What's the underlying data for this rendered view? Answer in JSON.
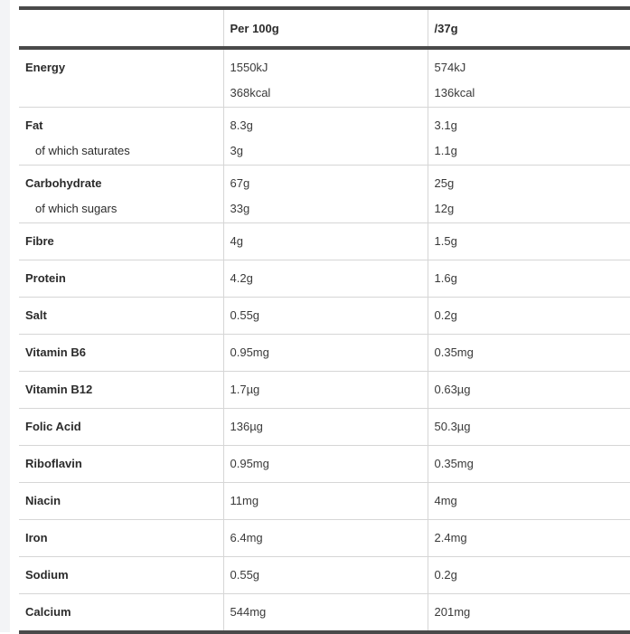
{
  "header": {
    "col0": "",
    "col1": "Per 100g",
    "col2": "/37g"
  },
  "rows": [
    {
      "name": "Energy",
      "per100": "1550kJ",
      "per37": "574kJ",
      "sub_name": "",
      "sub_per100": "368kcal",
      "sub_per37": "136kcal"
    },
    {
      "name": "Fat",
      "per100": "8.3g",
      "per37": "3.1g",
      "sub_name": "of which saturates",
      "sub_per100": "3g",
      "sub_per37": "1.1g"
    },
    {
      "name": "Carbohydrate",
      "per100": "67g",
      "per37": "25g",
      "sub_name": "of which sugars",
      "sub_per100": "33g",
      "sub_per37": "12g"
    },
    {
      "name": "Fibre",
      "per100": "4g",
      "per37": "1.5g"
    },
    {
      "name": "Protein",
      "per100": "4.2g",
      "per37": "1.6g"
    },
    {
      "name": "Salt",
      "per100": "0.55g",
      "per37": "0.2g"
    },
    {
      "name": "Vitamin B6",
      "per100": "0.95mg",
      "per37": "0.35mg"
    },
    {
      "name": "Vitamin B12",
      "per100": "1.7µg",
      "per37": "0.63µg"
    },
    {
      "name": "Folic Acid",
      "per100": "136µg",
      "per37": "50.3µg"
    },
    {
      "name": "Riboflavin",
      "per100": "0.95mg",
      "per37": "0.35mg"
    },
    {
      "name": "Niacin",
      "per100": "11mg",
      "per37": "4mg"
    },
    {
      "name": "Iron",
      "per100": "6.4mg",
      "per37": "2.4mg"
    },
    {
      "name": "Sodium",
      "per100": "0.55g",
      "per37": "0.2g"
    },
    {
      "name": "Calcium",
      "per100": "544mg",
      "per37": "201mg"
    }
  ]
}
